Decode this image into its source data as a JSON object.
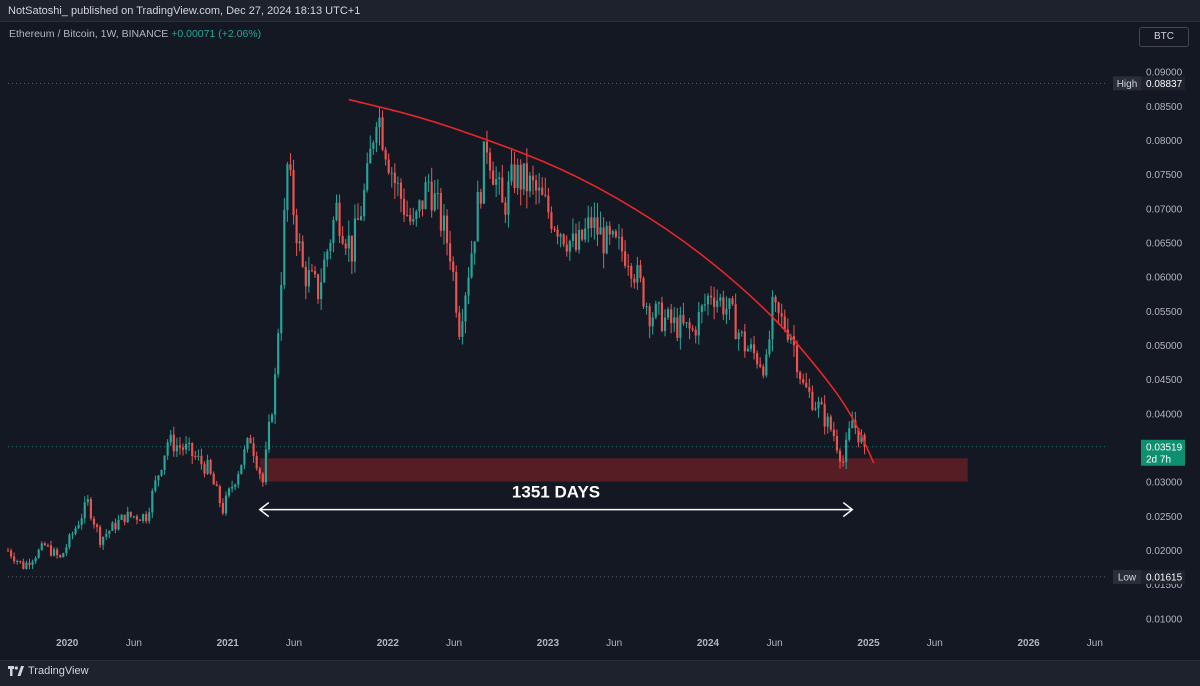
{
  "header": {
    "publish_line": "NotSatoshi_ published on TradingView.com, Dec 27, 2024 18:13 UTC+1"
  },
  "symbol": {
    "name": "Ethereum / Bitcoin, 1W, BINANCE",
    "change": "+0.00071 (+2.06%)"
  },
  "currency_button": "BTC",
  "footer": {
    "brand": "TradingView"
  },
  "colors": {
    "up": "#26a69a",
    "down": "#ef5350",
    "curve": "#e8262a",
    "zone": "#5a1f25",
    "arrow": "#ffffff",
    "price_tag": "#0e8f6f",
    "high_low_tag": "#2a2e39"
  },
  "chart_data": {
    "type": "candlestick",
    "title": "Ethereum / Bitcoin, 1W, BINANCE",
    "y_axis": {
      "min": 0.0075,
      "max": 0.0912,
      "ticks": [
        0.01,
        0.015,
        0.02,
        0.025,
        0.03,
        0.035,
        0.04,
        0.045,
        0.05,
        0.055,
        0.06,
        0.065,
        0.07,
        0.075,
        0.08,
        0.085,
        0.09
      ],
      "tick_labels": [
        "0.01000",
        "0.01500",
        "0.02000",
        "0.02500",
        "0.03000",
        "0.03500",
        "0.04000",
        "0.04500",
        "0.05000",
        "0.05500",
        "0.06000",
        "0.06500",
        "0.07000",
        "0.07500",
        "0.08000",
        "0.08500",
        "0.09000"
      ]
    },
    "x_axis": {
      "start": "2019-08-19",
      "end": "2026-07-01",
      "ticks": [
        {
          "date": "2020-01-01",
          "label": "2020"
        },
        {
          "date": "2020-06-01",
          "label": "Jun"
        },
        {
          "date": "2021-01-01",
          "label": "2021"
        },
        {
          "date": "2021-06-01",
          "label": "Jun"
        },
        {
          "date": "2022-01-01",
          "label": "2022"
        },
        {
          "date": "2022-06-01",
          "label": "Jun"
        },
        {
          "date": "2023-01-01",
          "label": "2023"
        },
        {
          "date": "2023-06-01",
          "label": "Jun"
        },
        {
          "date": "2024-01-01",
          "label": "2024"
        },
        {
          "date": "2024-06-01",
          "label": "Jun"
        },
        {
          "date": "2025-01-01",
          "label": "2025"
        },
        {
          "date": "2025-06-01",
          "label": "Jun"
        },
        {
          "date": "2026-01-01",
          "label": "2026"
        },
        {
          "date": "2026-06-01",
          "label": "Jun"
        }
      ]
    },
    "price_path": [
      [
        "2019-08-19",
        0.02
      ],
      [
        "2019-09-23",
        0.0177
      ],
      [
        "2019-11-11",
        0.0207
      ],
      [
        "2019-12-16",
        0.0188
      ],
      [
        "2020-02-17",
        0.027
      ],
      [
        "2020-03-16",
        0.0217
      ],
      [
        "2020-05-11",
        0.025
      ],
      [
        "2020-06-29",
        0.0251
      ],
      [
        "2020-08-17",
        0.036
      ],
      [
        "2020-09-28",
        0.0348
      ],
      [
        "2020-11-16",
        0.032
      ],
      [
        "2020-12-21",
        0.026
      ],
      [
        "2021-02-22",
        0.0365
      ],
      [
        "2021-03-22",
        0.03
      ],
      [
        "2021-04-19",
        0.045
      ],
      [
        "2021-05-17",
        0.076
      ],
      [
        "2021-06-21",
        0.061
      ],
      [
        "2021-07-26",
        0.058
      ],
      [
        "2021-09-06",
        0.07
      ],
      [
        "2021-10-11",
        0.064
      ],
      [
        "2021-11-15",
        0.074
      ],
      [
        "2021-12-06",
        0.085
      ],
      [
        "2022-01-17",
        0.074
      ],
      [
        "2022-02-28",
        0.067
      ],
      [
        "2022-04-04",
        0.074
      ],
      [
        "2022-05-23",
        0.064
      ],
      [
        "2022-06-13",
        0.053
      ],
      [
        "2022-07-11",
        0.064
      ],
      [
        "2022-08-15",
        0.08
      ],
      [
        "2022-09-19",
        0.07
      ],
      [
        "2022-10-17",
        0.075
      ],
      [
        "2022-11-28",
        0.073
      ],
      [
        "2023-01-09",
        0.069
      ],
      [
        "2023-03-06",
        0.064
      ],
      [
        "2023-04-10",
        0.068
      ],
      [
        "2023-05-15",
        0.065
      ],
      [
        "2023-07-03",
        0.0635
      ],
      [
        "2023-08-21",
        0.055
      ],
      [
        "2023-10-16",
        0.053
      ],
      [
        "2023-11-27",
        0.052
      ],
      [
        "2024-01-08",
        0.058
      ],
      [
        "2024-02-19",
        0.055
      ],
      [
        "2024-03-25",
        0.05
      ],
      [
        "2024-05-13",
        0.047
      ],
      [
        "2024-05-27",
        0.055
      ],
      [
        "2024-07-08",
        0.052
      ],
      [
        "2024-08-05",
        0.044
      ],
      [
        "2024-09-09",
        0.041
      ],
      [
        "2024-10-14",
        0.037
      ],
      [
        "2024-11-04",
        0.033
      ],
      [
        "2024-11-25",
        0.039
      ],
      [
        "2024-12-23",
        0.0352
      ]
    ],
    "high": {
      "label": "High",
      "value": "0.08837",
      "price": 0.08837
    },
    "low": {
      "label": "Low",
      "value": "0.01615",
      "price": 0.01615
    },
    "last_price": {
      "value": "0.03519",
      "price": 0.03519,
      "countdown": "2d 7h"
    },
    "support_zone": {
      "from": "2021-03-15",
      "to": "2025-08-15",
      "low": 0.0301,
      "high": 0.0335
    },
    "resistance_curve": [
      [
        "2021-10-04",
        0.086
      ],
      [
        "2022-03-14",
        0.0835
      ],
      [
        "2022-08-22",
        0.08
      ],
      [
        "2023-01-30",
        0.076
      ],
      [
        "2023-07-10",
        0.0705
      ],
      [
        "2023-12-18",
        0.0635
      ],
      [
        "2024-05-27",
        0.0545
      ],
      [
        "2024-09-23",
        0.0455
      ],
      [
        "2024-11-25",
        0.0398
      ],
      [
        "2025-01-13",
        0.0328
      ]
    ],
    "range_arrow": {
      "from": "2021-03-15",
      "to": "2024-11-25",
      "price": 0.026,
      "label": "1351 DAYS"
    }
  }
}
